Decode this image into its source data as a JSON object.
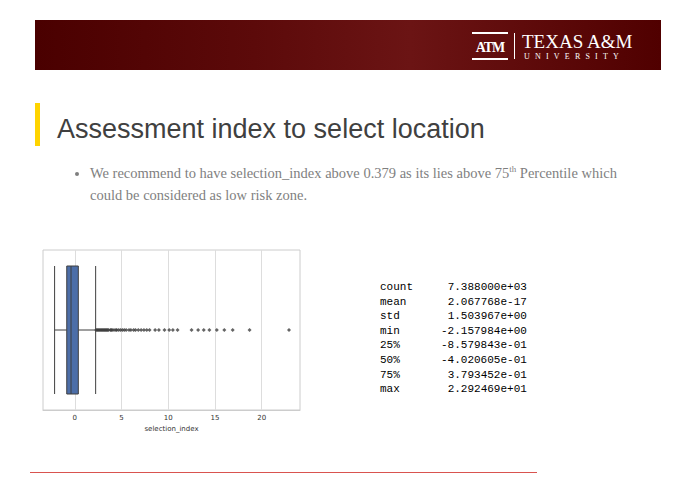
{
  "header": {
    "logo_mark": "ATM",
    "name": "TEXAS A&M",
    "subname": "UNIVERSITY"
  },
  "title": "Assessment index to select location",
  "bullet": {
    "text": "We recommend to have selection_index above 0.379 as its lies above 75",
    "superscript": "th",
    "continuation": " Percentile which could be considered as low risk zone."
  },
  "chart_data": {
    "type": "boxplot",
    "orientation": "horizontal",
    "xlabel": "selection_index",
    "box": {
      "low": -2.157984,
      "q1": -0.8579843,
      "median": -0.4020605,
      "q3": 0.3793452,
      "high": 2.234
    },
    "outliers": [
      2.3,
      2.4,
      2.5,
      2.6,
      2.7,
      2.8,
      2.9,
      3.0,
      3.1,
      3.2,
      3.3,
      3.4,
      3.5,
      3.6,
      3.8,
      3.9,
      4.0,
      4.2,
      4.4,
      4.5,
      4.7,
      4.9,
      5.1,
      5.3,
      5.5,
      5.8,
      6.0,
      6.3,
      6.5,
      6.8,
      7.1,
      7.4,
      7.7,
      8.0,
      8.6,
      9.0,
      9.6,
      10.1,
      10.5,
      11.0,
      12.5,
      13.2,
      13.8,
      14.4,
      15.2,
      16.0,
      16.9,
      18.7,
      22.92469
    ],
    "xlim": [
      -3.4,
      24.1
    ],
    "xticks": [
      0,
      5,
      10,
      15,
      20
    ],
    "grid": true,
    "tick_labels": "x",
    "color": "#4c6ea8",
    "marker": "diamond"
  },
  "table": {
    "rows": [
      [
        "count",
        "7.388000e+03"
      ],
      [
        "mean",
        "2.067768e-17"
      ],
      [
        "std",
        "1.503967e+00"
      ],
      [
        "min",
        "-2.157984e+00"
      ],
      [
        "25%",
        "-8.579843e-01"
      ],
      [
        "50%",
        "-4.020605e-01"
      ],
      [
        "75%",
        "3.793452e-01"
      ],
      [
        "max",
        "2.292469e+01"
      ]
    ]
  }
}
